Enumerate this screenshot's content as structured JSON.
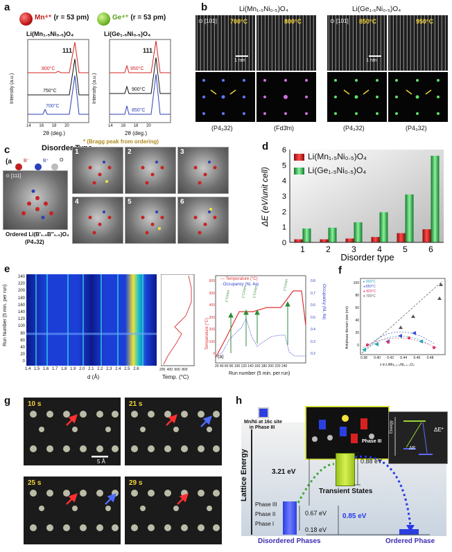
{
  "panel_a": {
    "label": "a",
    "mn_ion": "Mn⁴⁺",
    "mn_radius": "(r = 53 pm)",
    "ge_ion": "Ge⁴⁺",
    "ge_radius": "(r = 53 pm)",
    "left_title": "Li(Mn₁.₅Ni₀.₅)O₄",
    "right_title": "Li(Ge₁.₅Ni₀.₅)O₄",
    "peak_label": "111",
    "ylabel": "Intensity (a.u.)",
    "xlabel": "2θ (deg.)",
    "left_temps": [
      "800°C",
      "750°C",
      "700°C"
    ],
    "right_temps": [
      "950°C",
      "900°C",
      "850°C"
    ],
    "left_ticks": [
      "14",
      "16",
      "18",
      "20"
    ],
    "right_ticks": [
      "14",
      "16",
      "18",
      "20"
    ],
    "note": "* (Bragg peak from ordering)",
    "colors": {
      "red": "#d82020",
      "black": "#111111",
      "blue": "#2c3fb5",
      "note": "#b08a1e",
      "mn": "#c01818",
      "ge": "#74b82a"
    }
  },
  "panel_b": {
    "label": "b",
    "left_title": "Li(Mn₁.₅Ni₀.₅)O₄",
    "right_title": "Li(Ge₁.₅Ni₀.₅)O₄",
    "zone": "[101]",
    "temps": [
      "700°C",
      "800°C",
      "850°C",
      "950°C"
    ],
    "scale": "1 nm",
    "space_groups": [
      "(P4₃32)",
      "(Fd3̄m)",
      "(P4₃32)",
      "(P4₃32)"
    ]
  },
  "panel_c": {
    "label": "c",
    "heading": "Disorder Type",
    "legend": [
      "B⁻",
      "B⁺",
      "O"
    ],
    "zone": "[111]",
    "caption_line1": "Ordered Li(B′₁.₅B″₀.₅)O₄",
    "caption_line2": "(P4₃32)",
    "types": [
      "1",
      "2",
      "3",
      "4",
      "5",
      "6"
    ]
  },
  "panel_d": {
    "label": "d",
    "legend_mn": "Li(Mn₁.₅Ni₀.₅)O₄",
    "legend_ge": "Li(Ge₁.₅Ni₀.₅)O₄"
  },
  "chart_data": {
    "type": "bar",
    "categories": [
      "1",
      "2",
      "3",
      "4",
      "5",
      "6"
    ],
    "series": [
      {
        "name": "Li(Mn₁.₅Ni₀.₅)O₄",
        "values": [
          0.2,
          0.2,
          0.25,
          0.35,
          0.6,
          0.85
        ],
        "color": "#d42a2a"
      },
      {
        "name": "Li(Ge₁.₅Ni₀.₅)O₄",
        "values": [
          0.9,
          0.95,
          1.3,
          1.95,
          3.1,
          5.6
        ],
        "color": "#2fae4a"
      }
    ],
    "xlabel": "Disorder type",
    "ylabel": "ΔE (eV/unit cell)",
    "ylim": [
      0,
      6
    ],
    "yticks": [
      "0",
      "1",
      "2",
      "3",
      "4",
      "5",
      "6"
    ]
  },
  "panel_e": {
    "label": "e",
    "ylabel": "Run Number (5 min. per run)",
    "xlabel": "d (Å)",
    "yticks": [
      "0",
      "20",
      "40",
      "60",
      "80",
      "100",
      "120",
      "140",
      "160",
      "180",
      "200",
      "220",
      "240"
    ],
    "xticks": [
      "1.4",
      "1.5",
      "1.6",
      "1.7",
      "1.8",
      "1.9",
      "2.0",
      "2.1",
      "2.2",
      "2.3",
      "2.4",
      "2.5",
      "2.6"
    ],
    "temp_label": "Temp. (°C)",
    "temp_ticks": [
      "200",
      "400",
      "600",
      "800"
    ],
    "right_legend_temp": "Temperature (°C)",
    "right_legend_occ": "Occupancy (Ni, 4a)",
    "right_ylabel_left": "Temperature (°C)",
    "right_ylabel_right": "Occupancy (Ni, 4a)",
    "right_xlabel": "Run number (5 min. per run)",
    "right_left_ticks": [
      "0",
      "100",
      "200",
      "300",
      "400",
      "500",
      "600"
    ],
    "right_right_ticks": [
      "0.2",
      "0.3",
      "0.4",
      "0.5",
      "0.6",
      "0.7",
      "0.8"
    ],
    "right_xticks": [
      "20",
      "40",
      "60",
      "80",
      "100",
      "120",
      "140",
      "160",
      "180",
      "200",
      "220",
      "240"
    ],
    "rate_labels": [
      "1°C/min",
      "1°C/min",
      "1°C/min",
      "1°C/min"
    ],
    "sub_label": "(a)"
  },
  "panel_f": {
    "label": "f",
    "ylabel": "Antiphase domain size (nm)",
    "xlabel": "x in LiMn₁.₅₊ₓNi₀.₅₋ₓO₄",
    "legend": [
      "900°C",
      "850°C",
      "800°C",
      "700°C"
    ],
    "xticks": [
      "0.38",
      "0.40",
      "0.42",
      "0.44",
      "0.46",
      "0.48"
    ],
    "yticks": [
      "0",
      "20",
      "40",
      "60",
      "80",
      "100"
    ],
    "colors": [
      "#2aa6b8",
      "#3b4fcf",
      "#d83b6b",
      "#555555"
    ]
  },
  "panel_g": {
    "label": "g",
    "frames": [
      "10 s",
      "21 s",
      "25 s",
      "29 s"
    ],
    "scale": "5 Å"
  },
  "panel_h": {
    "label": "h",
    "site_note_line1": "Mn/Ni at 16c site",
    "site_note_line2": "in Phase III",
    "phase_iii_tag": "Phase III",
    "ylabel": "Lattice Energy",
    "e1": "3.21 eV",
    "e2": "0.88 eV",
    "e3": "0.67 eV",
    "e4": "0.85 eV",
    "e5": "0.18 eV",
    "phases": [
      "Phase III",
      "Phase II",
      "Phase I"
    ],
    "transient": "Transient States",
    "disordered": "Disordered Phases",
    "ordered": "Ordered Phase",
    "inset_energy": "Energy",
    "inset_de_star": "ΔE*",
    "inset_de": "ΔE"
  }
}
